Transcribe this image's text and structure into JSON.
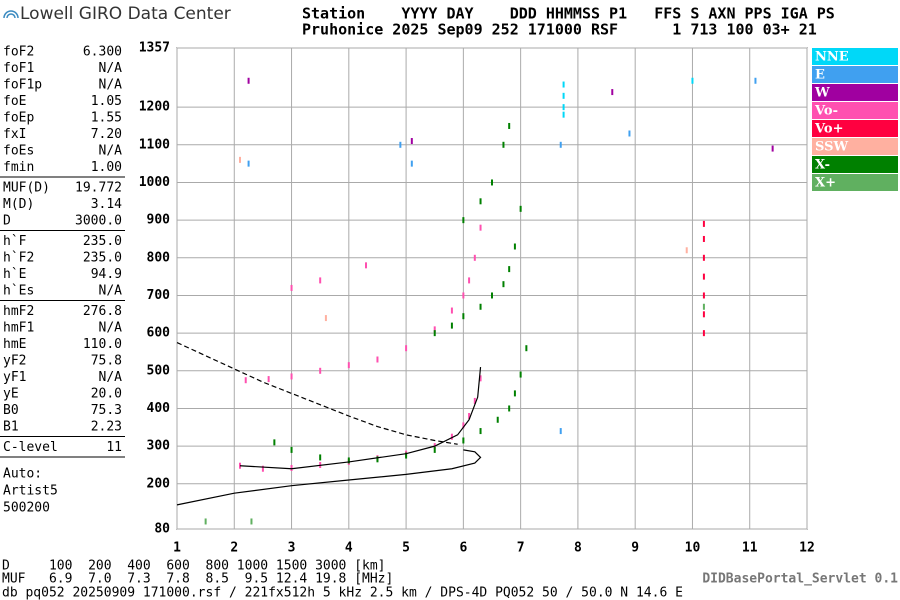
{
  "header": {
    "logo": "Lowell GIRO Data Center",
    "line1": "Station    YYYY DAY    DDD HHMMSS P1   FFS S AXN PPS IGA PS",
    "line2": "Pruhonice 2025 Sep09 252 171000 RSF      1 713 100 03+ 21"
  },
  "params": [
    [
      [
        "foF2",
        "6.300"
      ],
      [
        "foF1",
        "N/A"
      ],
      [
        "foF1p",
        "N/A"
      ],
      [
        "foE",
        "1.05"
      ],
      [
        "foEp",
        "1.55"
      ],
      [
        "fxI",
        "7.20"
      ],
      [
        "foEs",
        "N/A"
      ],
      [
        "fmin",
        "1.00"
      ]
    ],
    [
      [
        "MUF(D)",
        "19.772"
      ],
      [
        "M(D)",
        "3.14"
      ],
      [
        "D",
        "3000.0"
      ]
    ],
    [
      [
        "h`F",
        "235.0"
      ],
      [
        "h`F2",
        "235.0"
      ],
      [
        "h`E",
        "94.9"
      ],
      [
        "h`Es",
        "N/A"
      ]
    ],
    [
      [
        "hmF2",
        "276.8"
      ],
      [
        "hmF1",
        "N/A"
      ],
      [
        "hmE",
        "110.0"
      ],
      [
        "yF2",
        "75.8"
      ],
      [
        "yF1",
        "N/A"
      ],
      [
        "yE",
        "20.0"
      ],
      [
        "B0",
        "75.3"
      ],
      [
        "B1",
        "2.23"
      ]
    ],
    [
      [
        "C-level",
        "11"
      ]
    ]
  ],
  "auto": [
    "Auto:",
    "Artist5",
    "500200"
  ],
  "footer": {
    "d_row": "D     100  200  400  600  800 1000 1500 3000 [km]",
    "muf_row": "MUF   6.9  7.0  7.3  7.8  8.5  9.5 12.4 19.8 [MHz]",
    "db_row": "db pq052 20250909 171000.rsf / 221fx512h 5 kHz 2.5 km / DPS-4D PQ052 50 / 50.0 N 14.6 E",
    "servlet": "DIDBasePortal_Servlet 0.1"
  },
  "chart_data": {
    "type": "scatter",
    "xlim": [
      1,
      12
    ],
    "xticks": [
      1,
      2,
      3,
      4,
      5,
      6,
      7,
      8,
      9,
      10,
      11,
      12
    ],
    "ylim": [
      80,
      1357
    ],
    "yticks": [
      80,
      200,
      300,
      400,
      500,
      600,
      700,
      800,
      900,
      1000,
      1100,
      1200,
      1357
    ],
    "grid": true,
    "series": [
      {
        "name": "NNE",
        "color": "#00d8f8",
        "x": [
          7.75,
          7.75,
          7.75,
          7.75,
          10.0
        ],
        "y": [
          1260,
          1230,
          1200,
          1180,
          1270
        ]
      },
      {
        "name": "E",
        "color": "#40a0f0",
        "x": [
          2.25,
          5.1,
          7.7,
          8.9,
          11.1,
          4.9,
          7.7
        ],
        "y": [
          1050,
          1050,
          1100,
          1130,
          1270,
          1100,
          340
        ]
      },
      {
        "name": "W",
        "color": "#a000a0",
        "x": [
          2.25,
          8.6,
          5.1,
          11.4
        ],
        "y": [
          1270,
          1240,
          1110,
          1090
        ]
      },
      {
        "name": "Vo-",
        "color": "#ff50b0",
        "x": [
          2.1,
          2.5,
          3,
          3.5,
          4,
          4.5,
          5,
          5.5,
          5.8,
          6.0,
          6.1,
          6.2,
          6.3,
          2.2,
          2.6,
          3,
          3.5,
          4,
          4.5,
          5,
          5.5,
          5.8,
          6.0,
          6.1,
          6.2,
          6.3,
          3.0,
          3.5,
          4.3
        ],
        "y": [
          248,
          240,
          242,
          250,
          258,
          268,
          280,
          300,
          325,
          355,
          380,
          420,
          480,
          475,
          478,
          485,
          500,
          515,
          530,
          560,
          610,
          660,
          700,
          740,
          800,
          880,
          720,
          740,
          780
        ]
      },
      {
        "name": "Vo+",
        "color": "#ff0040",
        "x": [
          10.2,
          10.2,
          10.2,
          10.2,
          10.2,
          10.2,
          10.2
        ],
        "y": [
          600,
          650,
          700,
          750,
          800,
          850,
          890
        ]
      },
      {
        "name": "SSW",
        "color": "#ffb0a0",
        "x": [
          2.1,
          3.6,
          9.9
        ],
        "y": [
          1060,
          640,
          820
        ]
      },
      {
        "name": "X-",
        "color": "#008000",
        "x": [
          2.7,
          3,
          3.5,
          4,
          4.5,
          5,
          5.5,
          6,
          6.3,
          6.6,
          6.8,
          6.9,
          7.0,
          7.1,
          5.5,
          5.8,
          6,
          6.3,
          6.5,
          6.7,
          6.8,
          6.9,
          7.0,
          6.0,
          6.3,
          6.5,
          6.7,
          6.8
        ],
        "y": [
          310,
          290,
          270,
          262,
          265,
          275,
          290,
          315,
          340,
          370,
          400,
          440,
          490,
          560,
          600,
          620,
          645,
          670,
          700,
          730,
          770,
          830,
          930,
          900,
          950,
          1000,
          1100,
          1150
        ]
      },
      {
        "name": "X+",
        "color": "#60b060",
        "x": [
          2.3,
          10.2,
          1.5
        ],
        "y": [
          100,
          670,
          100
        ]
      }
    ],
    "profile_solid": [
      {
        "x": [
          1,
          2,
          3,
          4,
          5,
          5.8,
          6.2,
          6.3,
          6.2,
          6.0
        ],
        "y": [
          144,
          175,
          195,
          210,
          225,
          240,
          255,
          270,
          285,
          290
        ]
      },
      {
        "x": [
          2.1,
          3,
          4,
          5,
          5.5,
          5.9,
          6.1,
          6.25,
          6.3
        ],
        "y": [
          248,
          240,
          258,
          280,
          300,
          330,
          370,
          430,
          510
        ]
      }
    ],
    "profile_dashed": {
      "x": [
        1,
        1.5,
        2,
        2.5,
        3,
        3.5,
        4,
        4.5,
        5,
        5.5,
        5.9
      ],
      "y": [
        575,
        540,
        505,
        470,
        440,
        410,
        380,
        352,
        330,
        315,
        305
      ]
    }
  }
}
